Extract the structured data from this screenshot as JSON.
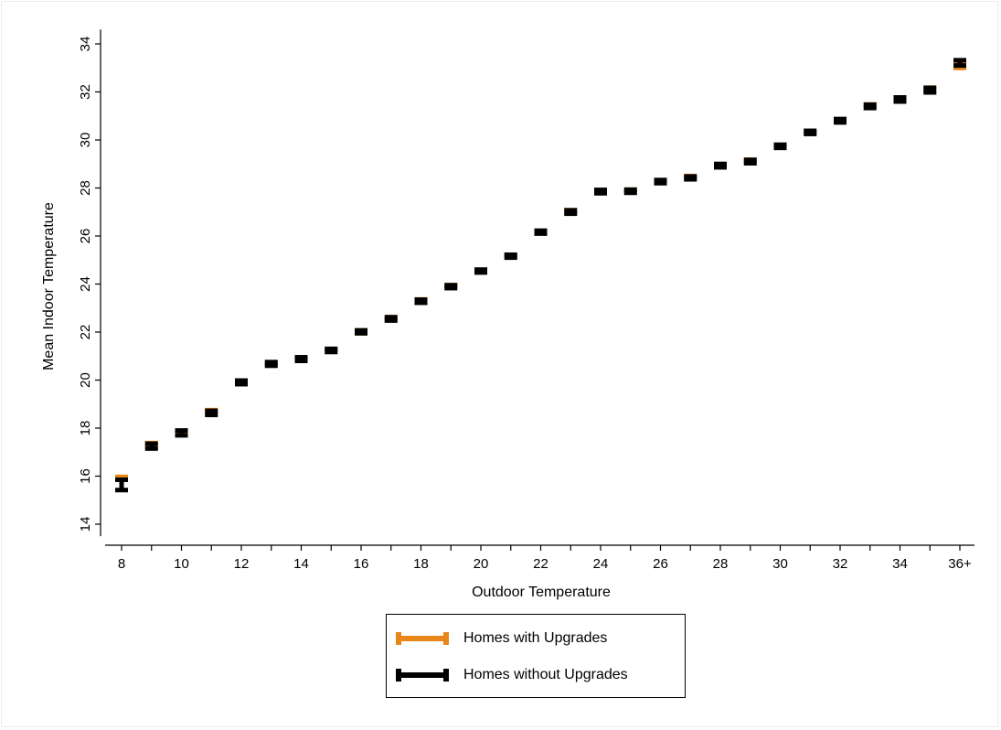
{
  "colors": {
    "with_upgrades": "#E8861A",
    "without_upgrades": "#000000",
    "axis": "#000000",
    "background": "#ffffff"
  },
  "chart_data": {
    "type": "scatter",
    "title": "",
    "xlabel": "Outdoor Temperature",
    "ylabel": "Mean Indoor Temperature",
    "ylim": [
      13.5,
      34.6
    ],
    "yticks": [
      14,
      16,
      18,
      20,
      22,
      24,
      26,
      28,
      30,
      32,
      34
    ],
    "x": [
      "8",
      "9",
      "10",
      "11",
      "12",
      "13",
      "14",
      "15",
      "16",
      "17",
      "18",
      "19",
      "20",
      "21",
      "22",
      "23",
      "24",
      "25",
      "26",
      "27",
      "28",
      "29",
      "30",
      "31",
      "32",
      "33",
      "34",
      "35",
      "36+"
    ],
    "xtick_labels": [
      "8",
      "10",
      "12",
      "14",
      "16",
      "18",
      "20",
      "22",
      "24",
      "26",
      "28",
      "30",
      "32",
      "34",
      "36+"
    ],
    "grid": false,
    "legend_position": "bottom",
    "series": [
      {
        "name": "Homes with Upgrades",
        "color": "#E8861A",
        "low": [
          15.85,
          17.2,
          17.72,
          18.58,
          19.85,
          20.6,
          20.82,
          21.18,
          21.95,
          22.5,
          23.25,
          23.85,
          24.5,
          25.12,
          26.13,
          26.95,
          27.8,
          27.82,
          28.22,
          28.38,
          28.88,
          29.05,
          29.68,
          30.27,
          30.75,
          31.35,
          31.63,
          32.0,
          33.0
        ],
        "high": [
          15.97,
          17.38,
          17.9,
          18.75,
          19.98,
          20.72,
          20.95,
          21.3,
          22.07,
          22.62,
          23.36,
          23.96,
          24.6,
          25.22,
          26.22,
          27.08,
          27.92,
          27.93,
          28.33,
          28.5,
          29.0,
          29.18,
          29.8,
          30.38,
          30.87,
          31.48,
          31.77,
          32.18,
          33.25
        ]
      },
      {
        "name": "Homes without Upgrades",
        "color": "#000000",
        "low": [
          15.42,
          17.15,
          17.7,
          18.55,
          19.83,
          20.6,
          20.8,
          21.17,
          21.95,
          22.48,
          23.22,
          23.83,
          24.48,
          25.1,
          26.1,
          26.93,
          27.78,
          27.8,
          28.2,
          28.36,
          28.86,
          29.03,
          29.67,
          30.25,
          30.73,
          31.33,
          31.6,
          31.98,
          33.1
        ],
        "high": [
          15.85,
          17.35,
          17.9,
          18.72,
          19.98,
          20.75,
          20.95,
          21.3,
          22.07,
          22.62,
          23.35,
          23.95,
          24.6,
          25.22,
          26.22,
          27.07,
          27.92,
          27.93,
          28.33,
          28.48,
          29.0,
          29.17,
          29.8,
          30.38,
          30.87,
          31.47,
          31.77,
          32.17,
          33.32
        ]
      }
    ]
  }
}
